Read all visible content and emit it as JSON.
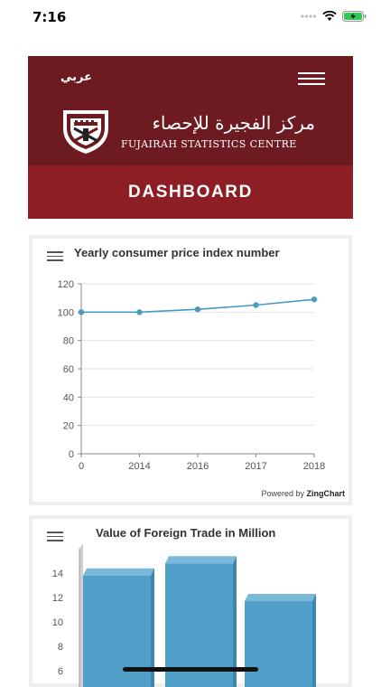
{
  "status": {
    "time": "7:16"
  },
  "header": {
    "lang_label": "عربي",
    "org_name_ar": "مركز الفجيرة للإحصاء",
    "org_name_en": "FUJAIRAH STATISTICS CENTRE"
  },
  "dashboard": {
    "title": "DASHBOARD"
  },
  "charts": {
    "cpi_title": "Yearly consumer price index number",
    "trade_title": "Value of Foreign Trade in Million",
    "powered_prefix": "Powered by",
    "powered_brand": "ZingChart"
  },
  "colors": {
    "header_dark": "#6d1b20",
    "dashboard_red": "#8d1f24",
    "line_blue": "#4a9bbd",
    "bar_blue": "#4f9fc8"
  },
  "chart_data": [
    {
      "type": "line",
      "title": "Yearly consumer price index number",
      "categories": [
        "0",
        "2014",
        "2016",
        "2017",
        "2018"
      ],
      "series": [
        {
          "values": [
            100,
            100,
            102,
            105,
            109
          ]
        }
      ],
      "ylim": [
        0,
        120
      ],
      "yticks": [
        0,
        20,
        40,
        60,
        80,
        100,
        120
      ],
      "grid": true
    },
    {
      "type": "bar",
      "title": "Value of Foreign Trade in Million",
      "categories": [
        "",
        "",
        ""
      ],
      "values": [
        13.8,
        14.8,
        11.7
      ],
      "visible_yticks": [
        6,
        8,
        10,
        12,
        14
      ]
    }
  ]
}
